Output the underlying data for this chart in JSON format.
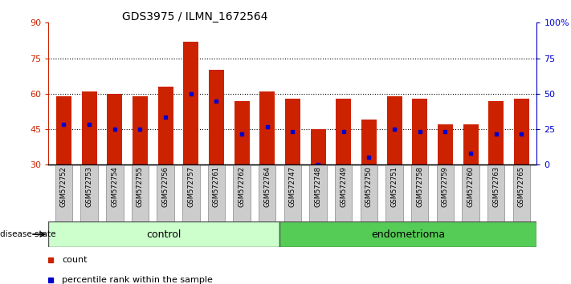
{
  "title": "GDS3975 / ILMN_1672564",
  "samples": [
    "GSM572752",
    "GSM572753",
    "GSM572754",
    "GSM572755",
    "GSM572756",
    "GSM572757",
    "GSM572761",
    "GSM572762",
    "GSM572764",
    "GSM572747",
    "GSM572748",
    "GSM572749",
    "GSM572750",
    "GSM572751",
    "GSM572758",
    "GSM572759",
    "GSM572760",
    "GSM572763",
    "GSM572765"
  ],
  "counts": [
    59,
    61,
    60,
    59,
    63,
    82,
    70,
    57,
    61,
    58,
    45,
    58,
    49,
    59,
    58,
    47,
    47,
    57,
    58
  ],
  "percentile_values": [
    47,
    47,
    45,
    45,
    50,
    60,
    57,
    43,
    46,
    44,
    30,
    44,
    33,
    45,
    44,
    44,
    35,
    43,
    43
  ],
  "ymin": 30,
  "ymax": 90,
  "yticks": [
    30,
    45,
    60,
    75,
    90
  ],
  "ytick_labels": [
    "30",
    "45",
    "60",
    "75",
    "90"
  ],
  "right_yticks": [
    0,
    25,
    50,
    75,
    100
  ],
  "right_ytick_labels": [
    "0",
    "25",
    "50",
    "75",
    "100%"
  ],
  "bar_color": "#cc2200",
  "blue_color": "#0000cc",
  "control_count": 9,
  "endometrioma_count": 10,
  "control_label": "control",
  "endometrioma_label": "endometrioma",
  "disease_state_label": "disease state",
  "legend_count_label": "count",
  "legend_percentile_label": "percentile rank within the sample",
  "bar_width": 0.6,
  "plot_bg": "#ffffff",
  "grid_color": "#000000",
  "control_bg": "#ccffcc",
  "endometrioma_bg": "#55cc55",
  "tick_label_bg": "#cccccc",
  "tick_label_edge": "#888888"
}
